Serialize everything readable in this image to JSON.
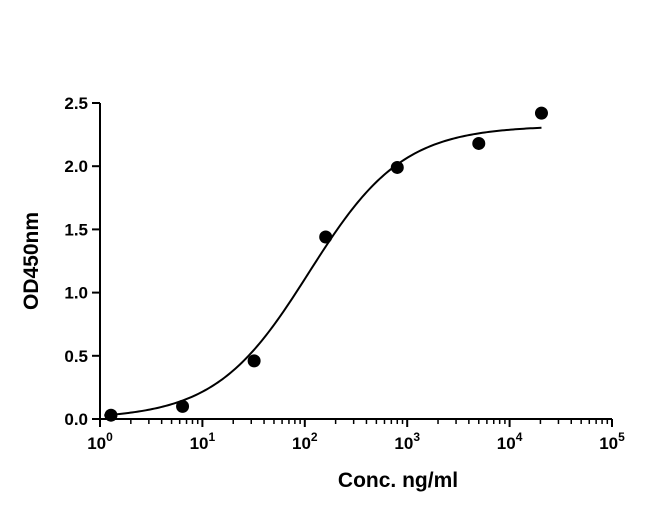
{
  "chart_data": {
    "type": "scatter",
    "title": "",
    "xlabel": "Conc. ng/ml",
    "ylabel": "OD450nm",
    "x_scale": "log",
    "xlim": [
      1,
      100000
    ],
    "ylim": [
      0,
      2.5
    ],
    "x_ticks": [
      {
        "base": "10",
        "exp": "0",
        "value": 1
      },
      {
        "base": "10",
        "exp": "1",
        "value": 10
      },
      {
        "base": "10",
        "exp": "2",
        "value": 100
      },
      {
        "base": "10",
        "exp": "3",
        "value": 1000
      },
      {
        "base": "10",
        "exp": "4",
        "value": 10000
      },
      {
        "base": "10",
        "exp": "5",
        "value": 100000
      }
    ],
    "y_ticks": [
      {
        "label": "0.0",
        "value": 0
      },
      {
        "label": "0.5",
        "value": 0.5
      },
      {
        "label": "1.0",
        "value": 1.0
      },
      {
        "label": "1.5",
        "value": 1.5
      },
      {
        "label": "2.0",
        "value": 2.0
      },
      {
        "label": "2.5",
        "value": 2.5
      }
    ],
    "grid": false,
    "legend": "none",
    "series": [
      {
        "x": [
          1.28,
          6.4,
          32,
          160,
          800,
          5000,
          20480
        ],
        "y": [
          0.03,
          0.1,
          0.46,
          1.44,
          1.99,
          2.18,
          2.42
        ]
      }
    ],
    "fit": {
      "type": "4PL",
      "bottom": 0.0,
      "top": 2.32,
      "ec50": 110,
      "hill": 0.95,
      "x_range": [
        1.1,
        20480
      ]
    }
  }
}
